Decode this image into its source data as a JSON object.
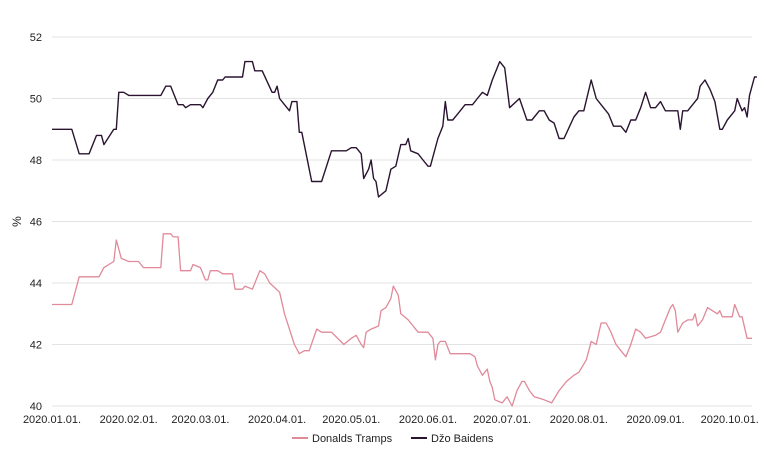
{
  "chart_data": {
    "type": "line",
    "title": "",
    "xlabel": "",
    "ylabel": "%",
    "ylim": [
      40,
      52
    ],
    "yticks": [
      40,
      42,
      44,
      46,
      48,
      50,
      52
    ],
    "xlim": [
      "2020-01-01",
      "2020-10-10"
    ],
    "xticks": [
      {
        "date": "2020-01-01",
        "label": "2020.01.01."
      },
      {
        "date": "2020-02-01",
        "label": "2020.02.01."
      },
      {
        "date": "2020-03-01",
        "label": "2020.03.01."
      },
      {
        "date": "2020-04-01",
        "label": "2020.04.01."
      },
      {
        "date": "2020-05-01",
        "label": "2020.05.01."
      },
      {
        "date": "2020-06-01",
        "label": "2020.06.01."
      },
      {
        "date": "2020-07-01",
        "label": "2020.07.01."
      },
      {
        "date": "2020-08-01",
        "label": "2020.08.01."
      },
      {
        "date": "2020-09-01",
        "label": "2020.09.01."
      },
      {
        "date": "2020-10-01",
        "label": "2020.10.01."
      }
    ],
    "grid": "horizontal",
    "legend_position": "bottom",
    "series": [
      {
        "name": "Donalds Tramps",
        "color": "#e08a9a",
        "points": [
          [
            "2020-01-01",
            43.3
          ],
          [
            "2020-01-09",
            43.3
          ],
          [
            "2020-01-12",
            44.2
          ],
          [
            "2020-01-20",
            44.2
          ],
          [
            "2020-01-22",
            44.5
          ],
          [
            "2020-01-26",
            44.7
          ],
          [
            "2020-01-27",
            45.4
          ],
          [
            "2020-01-29",
            44.8
          ],
          [
            "2020-02-01",
            44.7
          ],
          [
            "2020-02-05",
            44.7
          ],
          [
            "2020-02-07",
            44.5
          ],
          [
            "2020-02-14",
            44.5
          ],
          [
            "2020-02-15",
            45.6
          ],
          [
            "2020-02-18",
            45.6
          ],
          [
            "2020-02-19",
            45.5
          ],
          [
            "2020-02-21",
            45.5
          ],
          [
            "2020-02-22",
            44.4
          ],
          [
            "2020-02-26",
            44.4
          ],
          [
            "2020-02-27",
            44.6
          ],
          [
            "2020-03-01",
            44.5
          ],
          [
            "2020-03-03",
            44.1
          ],
          [
            "2020-03-04",
            44.1
          ],
          [
            "2020-03-05",
            44.4
          ],
          [
            "2020-03-08",
            44.4
          ],
          [
            "2020-03-10",
            44.3
          ],
          [
            "2020-03-14",
            44.3
          ],
          [
            "2020-03-15",
            43.8
          ],
          [
            "2020-03-18",
            43.8
          ],
          [
            "2020-03-19",
            43.9
          ],
          [
            "2020-03-22",
            43.8
          ],
          [
            "2020-03-25",
            44.4
          ],
          [
            "2020-03-27",
            44.3
          ],
          [
            "2020-03-29",
            44.0
          ],
          [
            "2020-04-02",
            43.7
          ],
          [
            "2020-04-04",
            43.0
          ],
          [
            "2020-04-08",
            42.0
          ],
          [
            "2020-04-10",
            41.7
          ],
          [
            "2020-04-12",
            41.8
          ],
          [
            "2020-04-14",
            41.8
          ],
          [
            "2020-04-17",
            42.5
          ],
          [
            "2020-04-19",
            42.4
          ],
          [
            "2020-04-23",
            42.4
          ],
          [
            "2020-04-28",
            42.0
          ],
          [
            "2020-05-01",
            42.2
          ],
          [
            "2020-05-03",
            42.3
          ],
          [
            "2020-05-05",
            42.0
          ],
          [
            "2020-05-06",
            41.9
          ],
          [
            "2020-05-07",
            42.4
          ],
          [
            "2020-05-09",
            42.5
          ],
          [
            "2020-05-12",
            42.6
          ],
          [
            "2020-05-13",
            43.1
          ],
          [
            "2020-05-15",
            43.2
          ],
          [
            "2020-05-17",
            43.5
          ],
          [
            "2020-05-18",
            43.9
          ],
          [
            "2020-05-20",
            43.6
          ],
          [
            "2020-05-21",
            43.0
          ],
          [
            "2020-05-24",
            42.8
          ],
          [
            "2020-05-26",
            42.6
          ],
          [
            "2020-05-28",
            42.4
          ],
          [
            "2020-06-01",
            42.4
          ],
          [
            "2020-06-03",
            42.2
          ],
          [
            "2020-06-04",
            41.5
          ],
          [
            "2020-06-05",
            42.0
          ],
          [
            "2020-06-06",
            42.1
          ],
          [
            "2020-06-08",
            42.1
          ],
          [
            "2020-06-10",
            41.7
          ],
          [
            "2020-06-14",
            41.7
          ],
          [
            "2020-06-18",
            41.7
          ],
          [
            "2020-06-20",
            41.6
          ],
          [
            "2020-06-21",
            41.3
          ],
          [
            "2020-06-23",
            41.0
          ],
          [
            "2020-06-25",
            41.2
          ],
          [
            "2020-06-26",
            40.8
          ],
          [
            "2020-06-27",
            40.6
          ],
          [
            "2020-06-28",
            40.2
          ],
          [
            "2020-07-01",
            40.1
          ],
          [
            "2020-07-03",
            40.3
          ],
          [
            "2020-07-05",
            40.0
          ],
          [
            "2020-07-07",
            40.5
          ],
          [
            "2020-07-09",
            40.8
          ],
          [
            "2020-07-10",
            40.8
          ],
          [
            "2020-07-12",
            40.5
          ],
          [
            "2020-07-14",
            40.3
          ],
          [
            "2020-07-18",
            40.2
          ],
          [
            "2020-07-21",
            40.1
          ],
          [
            "2020-07-24",
            40.5
          ],
          [
            "2020-07-27",
            40.8
          ],
          [
            "2020-07-30",
            41.0
          ],
          [
            "2020-08-01",
            41.1
          ],
          [
            "2020-08-04",
            41.5
          ],
          [
            "2020-08-06",
            42.1
          ],
          [
            "2020-08-08",
            42.0
          ],
          [
            "2020-08-10",
            42.7
          ],
          [
            "2020-08-12",
            42.7
          ],
          [
            "2020-08-14",
            42.4
          ],
          [
            "2020-08-16",
            42.0
          ],
          [
            "2020-08-18",
            41.8
          ],
          [
            "2020-08-20",
            41.6
          ],
          [
            "2020-08-22",
            42.0
          ],
          [
            "2020-08-24",
            42.5
          ],
          [
            "2020-08-26",
            42.4
          ],
          [
            "2020-08-28",
            42.2
          ],
          [
            "2020-09-01",
            42.3
          ],
          [
            "2020-09-03",
            42.4
          ],
          [
            "2020-09-05",
            42.8
          ],
          [
            "2020-09-07",
            43.2
          ],
          [
            "2020-09-08",
            43.3
          ],
          [
            "2020-09-09",
            43.1
          ],
          [
            "2020-09-10",
            42.4
          ],
          [
            "2020-09-12",
            42.7
          ],
          [
            "2020-09-14",
            42.8
          ],
          [
            "2020-09-16",
            42.8
          ],
          [
            "2020-09-17",
            43.0
          ],
          [
            "2020-09-18",
            42.6
          ],
          [
            "2020-09-20",
            42.8
          ],
          [
            "2020-09-22",
            43.2
          ],
          [
            "2020-09-24",
            43.1
          ],
          [
            "2020-09-26",
            43.0
          ],
          [
            "2020-09-27",
            43.1
          ],
          [
            "2020-09-28",
            42.9
          ],
          [
            "2020-10-02",
            42.9
          ],
          [
            "2020-10-03",
            43.3
          ],
          [
            "2020-10-05",
            42.9
          ],
          [
            "2020-10-06",
            42.9
          ],
          [
            "2020-10-08",
            42.2
          ],
          [
            "2020-10-10",
            42.2
          ]
        ]
      },
      {
        "name": "Džo Baidens",
        "color": "#2a1430",
        "points": [
          [
            "2020-01-01",
            49.0
          ],
          [
            "2020-01-09",
            49.0
          ],
          [
            "2020-01-12",
            48.2
          ],
          [
            "2020-01-16",
            48.2
          ],
          [
            "2020-01-19",
            48.8
          ],
          [
            "2020-01-21",
            48.8
          ],
          [
            "2020-01-22",
            48.5
          ],
          [
            "2020-01-26",
            49.0
          ],
          [
            "2020-01-27",
            49.0
          ],
          [
            "2020-01-28",
            50.2
          ],
          [
            "2020-01-30",
            50.2
          ],
          [
            "2020-02-01",
            50.1
          ],
          [
            "2020-02-14",
            50.1
          ],
          [
            "2020-02-16",
            50.4
          ],
          [
            "2020-02-18",
            50.4
          ],
          [
            "2020-02-21",
            49.8
          ],
          [
            "2020-02-23",
            49.8
          ],
          [
            "2020-02-24",
            49.7
          ],
          [
            "2020-02-26",
            49.8
          ],
          [
            "2020-03-01",
            49.8
          ],
          [
            "2020-03-02",
            49.7
          ],
          [
            "2020-03-04",
            50.0
          ],
          [
            "2020-03-06",
            50.2
          ],
          [
            "2020-03-08",
            50.6
          ],
          [
            "2020-03-10",
            50.6
          ],
          [
            "2020-03-11",
            50.7
          ],
          [
            "2020-03-18",
            50.7
          ],
          [
            "2020-03-19",
            51.2
          ],
          [
            "2020-03-22",
            51.2
          ],
          [
            "2020-03-23",
            50.9
          ],
          [
            "2020-03-26",
            50.9
          ],
          [
            "2020-03-30",
            50.2
          ],
          [
            "2020-03-31",
            50.2
          ],
          [
            "2020-04-01",
            50.4
          ],
          [
            "2020-04-02",
            50.0
          ],
          [
            "2020-04-04",
            49.8
          ],
          [
            "2020-04-06",
            49.6
          ],
          [
            "2020-04-07",
            49.9
          ],
          [
            "2020-04-09",
            49.9
          ],
          [
            "2020-04-10",
            48.9
          ],
          [
            "2020-04-11",
            48.9
          ],
          [
            "2020-04-15",
            47.3
          ],
          [
            "2020-04-19",
            47.3
          ],
          [
            "2020-04-23",
            48.3
          ],
          [
            "2020-04-29",
            48.3
          ],
          [
            "2020-05-01",
            48.4
          ],
          [
            "2020-05-03",
            48.4
          ],
          [
            "2020-05-05",
            48.2
          ],
          [
            "2020-05-06",
            47.4
          ],
          [
            "2020-05-08",
            47.7
          ],
          [
            "2020-05-09",
            48.0
          ],
          [
            "2020-05-10",
            47.4
          ],
          [
            "2020-05-11",
            47.3
          ],
          [
            "2020-05-12",
            46.8
          ],
          [
            "2020-05-15",
            47.0
          ],
          [
            "2020-05-17",
            47.7
          ],
          [
            "2020-05-19",
            47.8
          ],
          [
            "2020-05-21",
            48.5
          ],
          [
            "2020-05-23",
            48.5
          ],
          [
            "2020-05-24",
            48.7
          ],
          [
            "2020-05-25",
            48.3
          ],
          [
            "2020-05-28",
            48.2
          ],
          [
            "2020-05-30",
            48.0
          ],
          [
            "2020-06-01",
            47.8
          ],
          [
            "2020-06-02",
            47.8
          ],
          [
            "2020-06-05",
            48.7
          ],
          [
            "2020-06-07",
            49.1
          ],
          [
            "2020-06-08",
            49.9
          ],
          [
            "2020-06-09",
            49.3
          ],
          [
            "2020-06-11",
            49.3
          ],
          [
            "2020-06-13",
            49.5
          ],
          [
            "2020-06-16",
            49.8
          ],
          [
            "2020-06-19",
            49.8
          ],
          [
            "2020-06-21",
            50.0
          ],
          [
            "2020-06-23",
            50.2
          ],
          [
            "2020-06-25",
            50.1
          ],
          [
            "2020-06-27",
            50.6
          ],
          [
            "2020-06-30",
            51.2
          ],
          [
            "2020-07-02",
            51.0
          ],
          [
            "2020-07-04",
            49.7
          ],
          [
            "2020-07-08",
            50.0
          ],
          [
            "2020-07-11",
            49.3
          ],
          [
            "2020-07-13",
            49.3
          ],
          [
            "2020-07-16",
            49.6
          ],
          [
            "2020-07-18",
            49.6
          ],
          [
            "2020-07-20",
            49.3
          ],
          [
            "2020-07-22",
            49.2
          ],
          [
            "2020-07-24",
            48.7
          ],
          [
            "2020-07-26",
            48.7
          ],
          [
            "2020-07-30",
            49.4
          ],
          [
            "2020-08-01",
            49.6
          ],
          [
            "2020-08-03",
            49.6
          ],
          [
            "2020-08-06",
            50.6
          ],
          [
            "2020-08-08",
            50.0
          ],
          [
            "2020-08-10",
            49.8
          ],
          [
            "2020-08-13",
            49.5
          ],
          [
            "2020-08-15",
            49.1
          ],
          [
            "2020-08-18",
            49.1
          ],
          [
            "2020-08-20",
            48.9
          ],
          [
            "2020-08-22",
            49.3
          ],
          [
            "2020-08-24",
            49.3
          ],
          [
            "2020-08-26",
            49.7
          ],
          [
            "2020-08-28",
            50.2
          ],
          [
            "2020-08-30",
            49.7
          ],
          [
            "2020-09-01",
            49.7
          ],
          [
            "2020-09-03",
            49.9
          ],
          [
            "2020-09-05",
            49.6
          ],
          [
            "2020-09-10",
            49.6
          ],
          [
            "2020-09-11",
            49.0
          ],
          [
            "2020-09-12",
            49.6
          ],
          [
            "2020-09-14",
            49.6
          ],
          [
            "2020-09-17",
            49.9
          ],
          [
            "2020-09-18",
            50.0
          ],
          [
            "2020-09-19",
            50.4
          ],
          [
            "2020-09-21",
            50.6
          ],
          [
            "2020-09-23",
            50.3
          ],
          [
            "2020-09-25",
            49.9
          ],
          [
            "2020-09-27",
            49.0
          ],
          [
            "2020-09-28",
            49.0
          ],
          [
            "2020-09-30",
            49.3
          ],
          [
            "2020-10-02",
            49.5
          ],
          [
            "2020-10-03",
            49.6
          ],
          [
            "2020-10-04",
            50.0
          ],
          [
            "2020-10-05",
            49.8
          ],
          [
            "2020-10-06",
            49.6
          ],
          [
            "2020-10-07",
            49.7
          ],
          [
            "2020-10-08",
            49.4
          ],
          [
            "2020-10-09",
            50.1
          ],
          [
            "2020-10-10",
            50.4
          ],
          [
            "2020-10-11",
            50.7
          ],
          [
            "2020-10-12",
            50.7
          ]
        ]
      }
    ]
  }
}
